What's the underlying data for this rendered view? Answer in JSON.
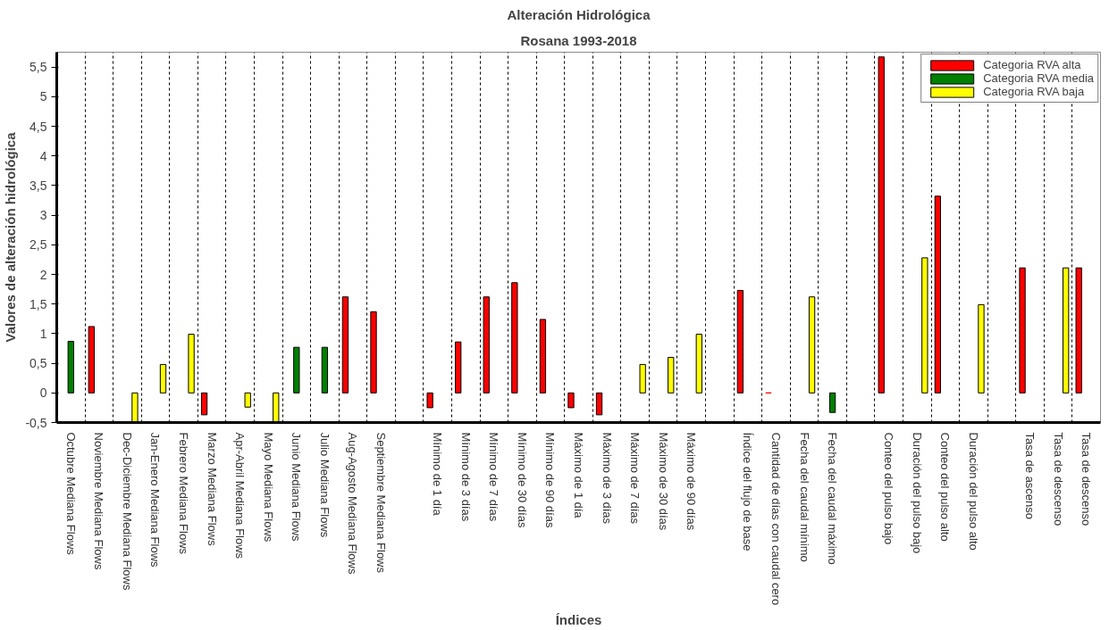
{
  "chart_data": {
    "type": "bar",
    "title": "Alteración Hidrológica",
    "subtitle": "Rosana 1993-2018",
    "xlabel": "Índices",
    "ylabel": "Valores de alteración hidrológica",
    "categories": [
      "Octubre Mediana Flows",
      "Noviembre Mediana Flows",
      "Dec-Diciembre Mediana Flows",
      "Jan-Enero Mediana Flows",
      "Febrero Mediana Flows",
      "Marzo Mediana Flows",
      "Apr-Abril Mediana Flows",
      "Mayo Mediana Flows",
      "Junio Mediana Flows",
      "Julio Mediana Flows",
      "Aug-Agosto Mediana Flows",
      "Septiembre Mediana Flows",
      null,
      "Mínimo de 1 día",
      "Mínimo de 3 días",
      "Mínimo de 7 días",
      "Mínimo de 30 días",
      "Mínimo de 90 días",
      "Máximo de 1 día",
      "Máximo de 3 días",
      "Máximo de 7 días",
      "Máximo de 30 días",
      "Máximo de 90 días",
      null,
      "Índice del flujo de base",
      "Cantidad de días con caudal cero",
      "Fecha del caudal mínimo",
      "Fecha del caudal máximo",
      null,
      "Conteo del pulso bajo",
      "Duración del pulso bajo",
      "Conteo del pulso alto",
      "Duración del pulso alto",
      null,
      "Tasa de ascenso",
      "Tasa de descenso",
      "Tasa de descenso"
    ],
    "series": [
      {
        "name": "Categoria RVA alta",
        "color": "#ff0000",
        "values": [
          null,
          1.12,
          null,
          null,
          null,
          -0.37,
          null,
          null,
          null,
          null,
          1.62,
          1.37,
          null,
          -0.25,
          0.86,
          1.62,
          1.86,
          1.24,
          -0.25,
          -0.37,
          null,
          null,
          null,
          null,
          1.73,
          0,
          null,
          null,
          null,
          5.67,
          null,
          3.32,
          null,
          null,
          2.11,
          null,
          2.11
        ]
      },
      {
        "name": "Categoria RVA media",
        "color": "#008000",
        "values": [
          0.87,
          null,
          null,
          null,
          null,
          null,
          null,
          null,
          0.77,
          0.77,
          null,
          null,
          null,
          null,
          null,
          null,
          null,
          null,
          null,
          null,
          null,
          null,
          null,
          null,
          null,
          null,
          null,
          -0.33,
          null,
          null,
          null,
          null,
          null,
          null,
          null,
          null,
          null
        ]
      },
      {
        "name": "Categoria RVA baja",
        "color": "#ffff00",
        "values": [
          null,
          null,
          -0.5,
          0.48,
          0.99,
          null,
          -0.24,
          -0.5,
          null,
          null,
          null,
          null,
          null,
          null,
          null,
          null,
          null,
          null,
          null,
          null,
          0.48,
          0.6,
          0.99,
          null,
          null,
          null,
          1.62,
          null,
          null,
          null,
          2.28,
          null,
          1.49,
          null,
          null,
          2.11,
          null
        ]
      }
    ],
    "ylim": [
      -0.5,
      5.75
    ],
    "yticks": [
      {
        "value": -0.5,
        "label": "-0,5"
      },
      0,
      {
        "value": 0.5,
        "label": "0,5"
      },
      1,
      {
        "value": 1.5,
        "label": "1,5"
      },
      2,
      {
        "value": 2.5,
        "label": "2,5"
      },
      3,
      {
        "value": 3.5,
        "label": "3,5"
      },
      4,
      {
        "value": 4.5,
        "label": "4,5"
      },
      5,
      {
        "value": 5.5,
        "label": "5,5"
      }
    ],
    "grid": "x",
    "legend": "top right"
  }
}
